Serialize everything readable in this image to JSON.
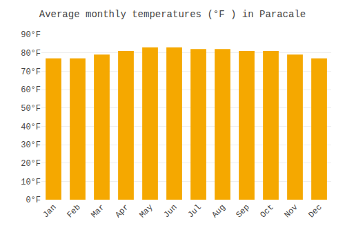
{
  "chart_data": {
    "type": "bar",
    "title": "Average monthly temperatures (°F ) in Paracale",
    "categories": [
      "Jan",
      "Feb",
      "Mar",
      "Apr",
      "May",
      "Jun",
      "Jul",
      "Aug",
      "Sep",
      "Oct",
      "Nov",
      "Dec"
    ],
    "values": [
      77,
      77,
      79,
      81,
      83,
      83,
      82,
      82,
      81,
      81,
      79,
      77
    ],
    "color": "#F5A800",
    "ylim": [
      0,
      90
    ],
    "yticks": [
      {
        "value": 0,
        "label": "0°F"
      },
      {
        "value": 10,
        "label": "10°F"
      },
      {
        "value": 20,
        "label": "20°F"
      },
      {
        "value": 30,
        "label": "30°F"
      },
      {
        "value": 40,
        "label": "40°F"
      },
      {
        "value": 50,
        "label": "50°F"
      },
      {
        "value": 60,
        "label": "60°F"
      },
      {
        "value": 70,
        "label": "70°F"
      },
      {
        "value": 80,
        "label": "80°F"
      },
      {
        "value": 90,
        "label": "90°F"
      }
    ],
    "grid": true
  }
}
